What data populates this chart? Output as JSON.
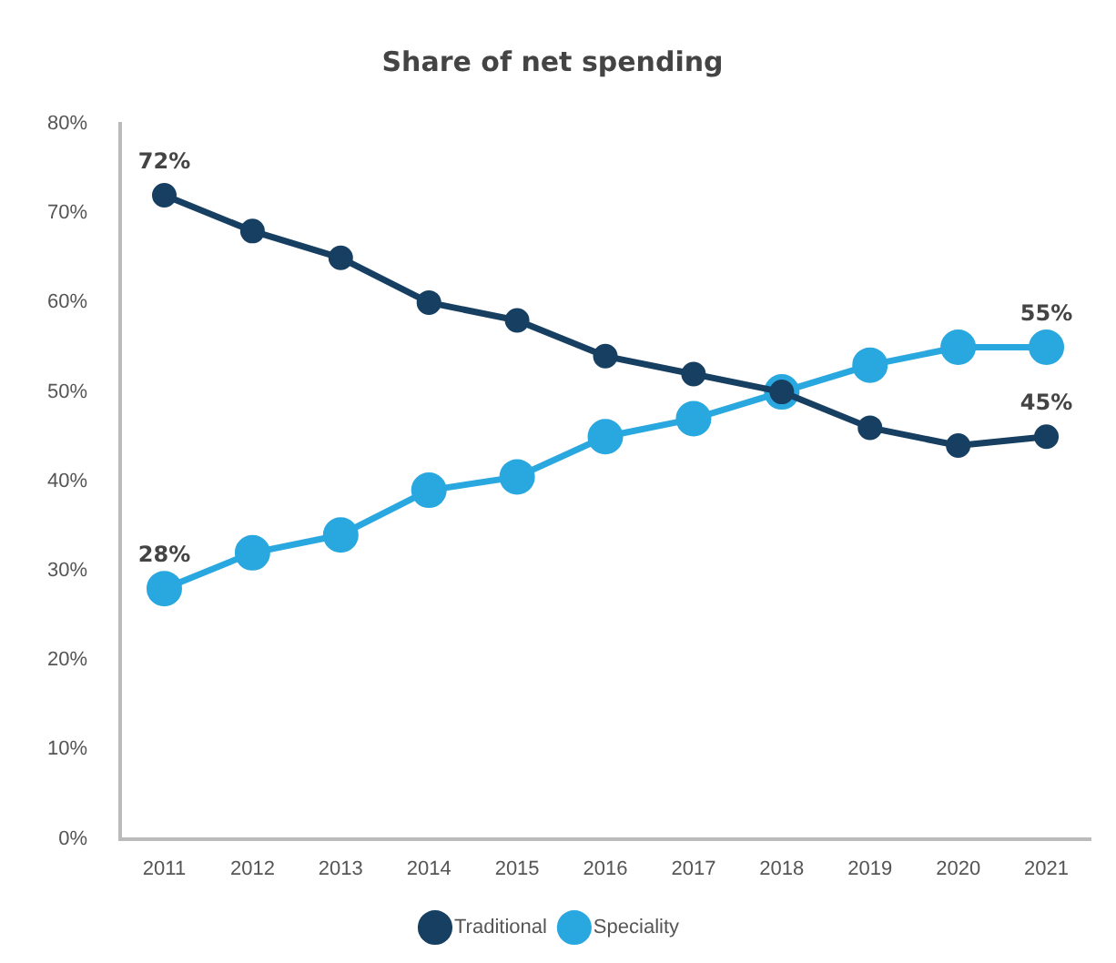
{
  "chart_data": {
    "type": "line",
    "title": "Share of net spending",
    "categories": [
      "2011",
      "2012",
      "2013",
      "2014",
      "2015",
      "2016",
      "2017",
      "2018",
      "2019",
      "2020",
      "2021"
    ],
    "series": [
      {
        "name": "Speciality",
        "color": "#29a8e0",
        "values": [
          28,
          32,
          34,
          39,
          40.5,
          45,
          47,
          50,
          53,
          55,
          55
        ],
        "value_labels": [
          "28%",
          null,
          null,
          null,
          null,
          null,
          null,
          null,
          null,
          null,
          "55%"
        ]
      },
      {
        "name": "Traditional",
        "color": "#173f62",
        "values": [
          72,
          68,
          65,
          60,
          58,
          54,
          52,
          50,
          46,
          44,
          45
        ],
        "value_labels": [
          "72%",
          null,
          null,
          null,
          null,
          null,
          null,
          null,
          null,
          null,
          "45%"
        ]
      }
    ],
    "ylim": [
      0,
      80
    ],
    "yticks": [
      {
        "value": 0,
        "label": "0%"
      },
      {
        "value": 10,
        "label": "10%"
      },
      {
        "value": 20,
        "label": "20%"
      },
      {
        "value": 30,
        "label": "30%"
      },
      {
        "value": 40,
        "label": "40%"
      },
      {
        "value": 50,
        "label": "50%"
      },
      {
        "value": 60,
        "label": "60%"
      },
      {
        "value": 70,
        "label": "70%"
      },
      {
        "value": 80,
        "label": "80%"
      }
    ],
    "grid": false,
    "legend": "bottom",
    "marker": "circle",
    "line_style": "solid"
  }
}
